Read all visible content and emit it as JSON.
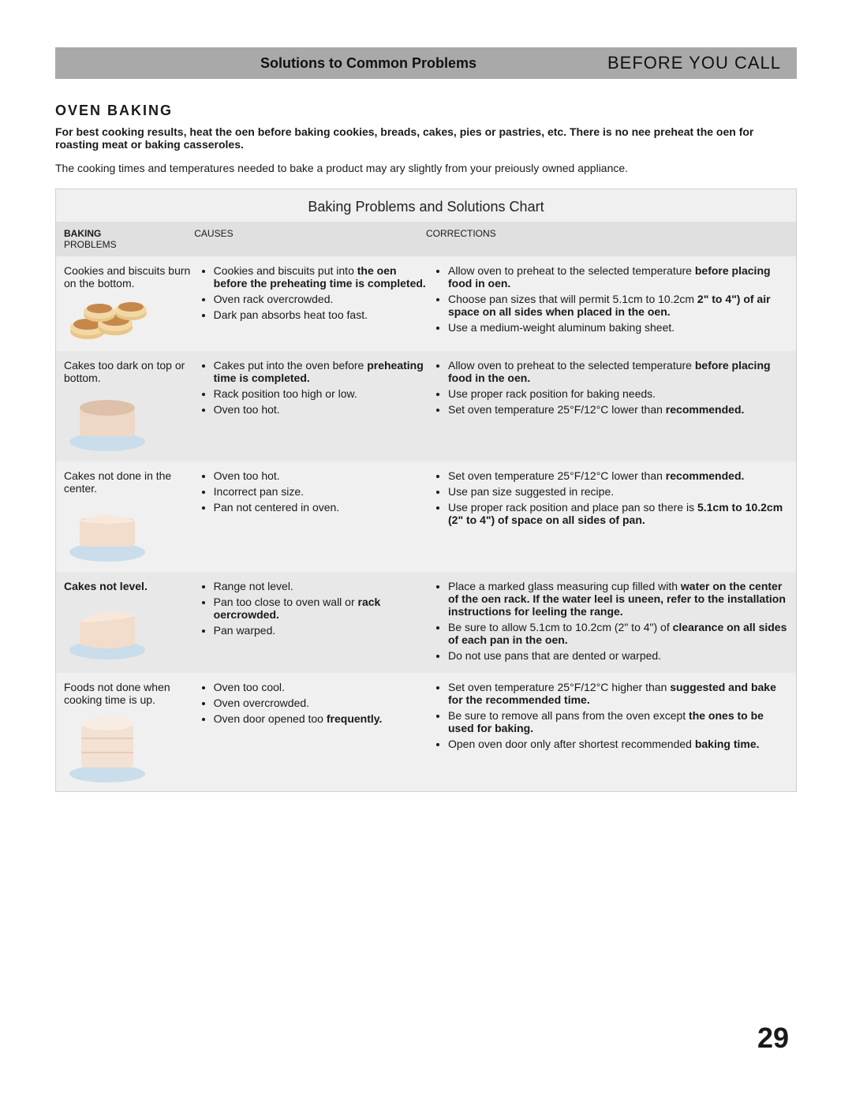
{
  "header": {
    "left": "Solutions to Common Problems",
    "right": "BEFORE YOU CALL"
  },
  "section_title": "Oven Baking",
  "intro_bold": "For best cooking results, heat the oen before baking cookies, breads, cakes, pies or pastries, etc. There is no nee preheat the oen for roasting meat or baking casseroles.",
  "intro_plain": "The cooking times and temperatures needed to bake a product may ary slightly from your preiously owned appliance.",
  "chart_title": "Baking Problems and   Solutions   Chart",
  "col_headers": {
    "c1a": "BAKING",
    "c1b": "PROBLEMS",
    "c2": "CAUSES",
    "c3": "CORRECTIONS"
  },
  "rows": [
    {
      "problem": "Cookies and biscuits burn on the bottom.",
      "problem_bold": false,
      "icon": "cookies",
      "causes": [
        {
          "pre": "Cookies and biscuits put into ",
          "bold": "the oen before the preheating time is completed."
        },
        {
          "pre": "Oven rack overcrowded.",
          "bold": ""
        },
        {
          "pre": "Dark pan absorbs heat too fast.",
          "bold": ""
        }
      ],
      "corrections": [
        {
          "pre": "Allow oven to preheat to the selected temperature ",
          "bold": "before placing food in oen."
        },
        {
          "pre": "Choose pan sizes that will permit 5.1cm to 10.2cm ",
          "bold": "2\" to 4\") of air space on all sides when placed in the oen."
        },
        {
          "pre": "Use a medium-weight aluminum baking sheet.",
          "bold": ""
        }
      ]
    },
    {
      "problem": "Cakes too dark on top or bottom.",
      "problem_bold": false,
      "icon": "cake-dark",
      "causes": [
        {
          "pre": "Cakes put into the oven before ",
          "bold": "preheating time is completed."
        },
        {
          "pre": "Rack position too high or low.",
          "bold": ""
        },
        {
          "pre": "Oven too hot.",
          "bold": ""
        }
      ],
      "corrections": [
        {
          "pre": "Allow oven to preheat to the selected temperature ",
          "bold": "before placing food in the oen."
        },
        {
          "pre": "Use proper rack position for baking needs.",
          "bold": ""
        },
        {
          "pre": "Set oven temperature 25°F/12°C lower than ",
          "bold": "recommended."
        }
      ]
    },
    {
      "problem": "Cakes not done in the center.",
      "problem_bold": false,
      "icon": "cake-center",
      "causes": [
        {
          "pre": "Oven too hot.",
          "bold": ""
        },
        {
          "pre": "Incorrect pan size.",
          "bold": ""
        },
        {
          "pre": "Pan not centered in oven.",
          "bold": ""
        }
      ],
      "corrections": [
        {
          "pre": "Set oven temperature 25°F/12°C lower than ",
          "bold": "recommended."
        },
        {
          "pre": "Use pan size suggested in recipe.",
          "bold": ""
        },
        {
          "pre": "Use proper rack position and place pan so there is ",
          "bold": "5.1cm to 10.2cm (2\" to 4\") of space on all sides of pan."
        }
      ]
    },
    {
      "problem": "Cakes not level.",
      "problem_bold": true,
      "icon": "cake-level",
      "causes": [
        {
          "pre": "Range not level.",
          "bold": ""
        },
        {
          "pre": "Pan too close to oven wall or ",
          "bold": "rack oercrowded."
        },
        {
          "pre": "Pan warped.",
          "bold": ""
        }
      ],
      "corrections": [
        {
          "pre": "Place a marked glass measuring cup filled with ",
          "bold": "water on the center of the oen rack.  If the water leel is uneen, refer to the installation instructions for leeling the range."
        },
        {
          "pre": "Be sure to allow 5.1cm to 10.2cm (2\" to 4\") of ",
          "bold": "clearance on all sides of each pan in the oen."
        },
        {
          "pre": "Do not use pans that are dented or warped.",
          "bold": ""
        }
      ]
    },
    {
      "problem": "Foods not done when cooking time is up.",
      "problem_bold": false,
      "icon": "cake-tall",
      "causes": [
        {
          "pre": "Oven too cool.",
          "bold": ""
        },
        {
          "pre": "Oven overcrowded.",
          "bold": ""
        },
        {
          "pre": "Oven door opened too ",
          "bold": "frequently."
        }
      ],
      "corrections": [
        {
          "pre": "Set oven temperature 25°F/12°C higher than ",
          "bold": "suggested and bake for the recommended time."
        },
        {
          "pre": "Be sure to remove all pans from the oven except ",
          "bold": "the ones to be used for baking."
        },
        {
          "pre": "Open oven door only after shortest recommended ",
          "bold": "baking time."
        }
      ]
    }
  ],
  "page_number": "29"
}
